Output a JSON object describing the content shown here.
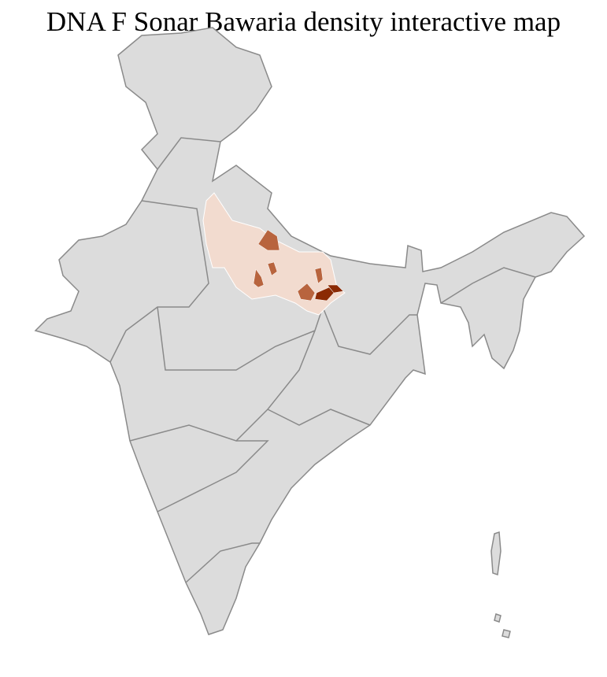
{
  "title": "DNA F Sonar Bawaria density interactive map",
  "colors": {
    "land": "#dcdcdc",
    "state_border": "#8a8a8a",
    "district_border": "#ffffff",
    "low_density": "#f2dbcf",
    "medium_density": "#b8643e",
    "high_density": "#8b2a04"
  }
}
